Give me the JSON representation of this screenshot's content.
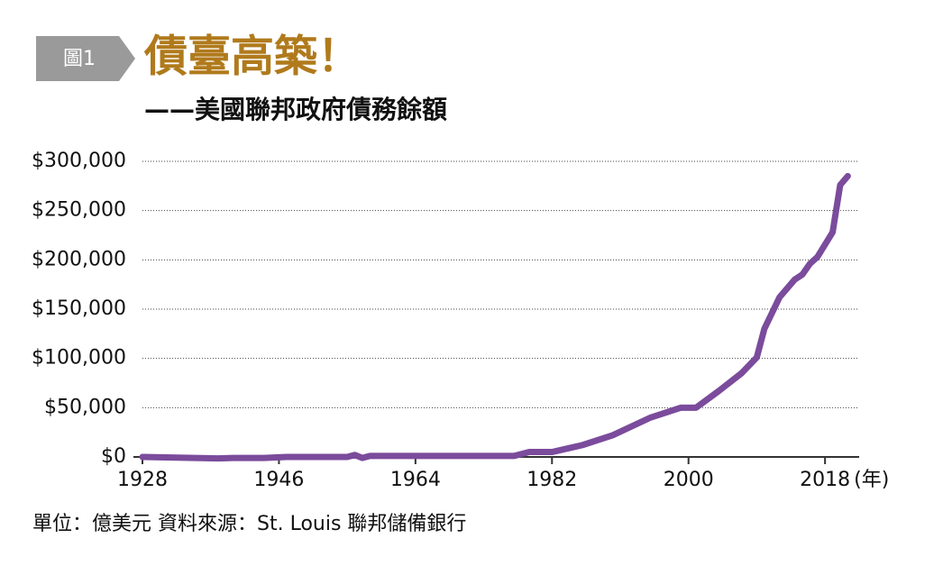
{
  "chart_data": {
    "type": "line",
    "badge": "圖1",
    "title": "債臺高築！",
    "subtitle": "——美國聯邦政府債務餘額",
    "x_unit": "(年)",
    "footnote": "單位：億美元  資料來源：St. Louis 聯邦儲備銀行",
    "x": [
      1928,
      1938,
      1940,
      1944,
      1947,
      1955,
      1956,
      1957,
      1958,
      1977,
      1979,
      1982,
      1986,
      1990,
      1995,
      1999,
      2001,
      2004,
      2007,
      2009,
      2010,
      2012,
      2014,
      2015,
      2016,
      2017,
      2019,
      2020,
      2021
    ],
    "series": [
      {
        "name": "美國聯邦政府債務餘額",
        "color": "#7b4b9c",
        "values": [
          0,
          -1500,
          -1000,
          -1000,
          0,
          0,
          2000,
          -1000,
          1000,
          1000,
          5000,
          5000,
          12000,
          22000,
          40000,
          50000,
          50000,
          67000,
          85000,
          101000,
          130000,
          162000,
          180000,
          185000,
          196000,
          203000,
          228000,
          276000,
          285000
        ]
      }
    ],
    "xlim": [
      1928,
      2022.5
    ],
    "xticks": [
      1928,
      1946,
      1964,
      1982,
      2000,
      2018
    ],
    "ylim": [
      0,
      300000
    ],
    "yticks": [
      {
        "value": 0,
        "label": "$0"
      },
      {
        "value": 50000,
        "label": "$50,000"
      },
      {
        "value": 100000,
        "label": "$100,000"
      },
      {
        "value": 150000,
        "label": "$150,000"
      },
      {
        "value": 200000,
        "label": "$200,000"
      },
      {
        "value": 250000,
        "label": "$250,000"
      },
      {
        "value": 300000,
        "label": "$300,000"
      }
    ],
    "grid": true
  }
}
